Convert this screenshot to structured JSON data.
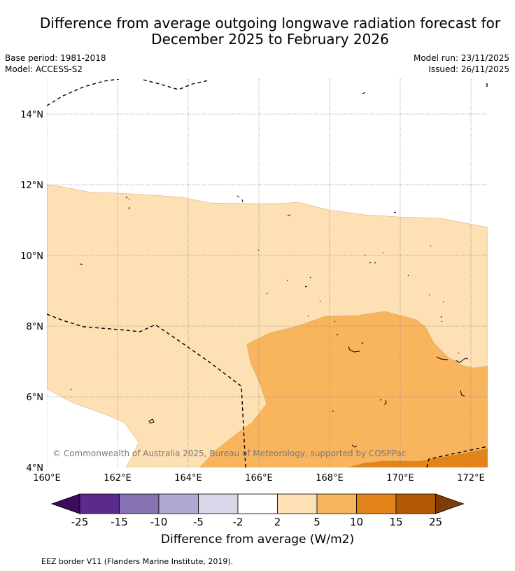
{
  "title": {
    "line1": "Difference from average outgoing longwave radiation forecast for",
    "line2": "December 2025 to February 2026"
  },
  "meta": {
    "base_period": "Base period: 1981-2018",
    "model": "Model: ACCESS-S2",
    "model_run": "Model run: 23/11/2025",
    "issued": "Issued: 26/11/2025"
  },
  "map": {
    "lat_labels": [
      "14°N",
      "12°N",
      "10°N",
      "8°N",
      "6°N",
      "4°N"
    ],
    "lon_labels": [
      "160°E",
      "162°E",
      "164°E",
      "166°E",
      "168°E",
      "170°E",
      "172°E"
    ],
    "copyright": "© Commonwealth of Australia 2025, Bureau of Meteorology, supported by COSPPac",
    "colors": {
      "cat_2_5": "#fde0b3",
      "cat_5_10": "#f9b45e",
      "cat_10_15": "#e2841a"
    }
  },
  "colorbar": {
    "title": "Difference from average (W/m2)",
    "tick_labels": [
      "-25",
      "-15",
      "-10",
      "-5",
      "-2",
      "2",
      "5",
      "10",
      "15",
      "25"
    ],
    "colors": [
      "#3a0c5a",
      "#5b2a8c",
      "#8573b1",
      "#b1a8d3",
      "#d8d7ea",
      "#ffffff",
      "#fde0b3",
      "#f9b45e",
      "#e2841a",
      "#b35906",
      "#7f3b08"
    ]
  },
  "legend": {
    "eez_label": "EEZ border V11 (Flanders Marine Institute, 2019)."
  }
}
